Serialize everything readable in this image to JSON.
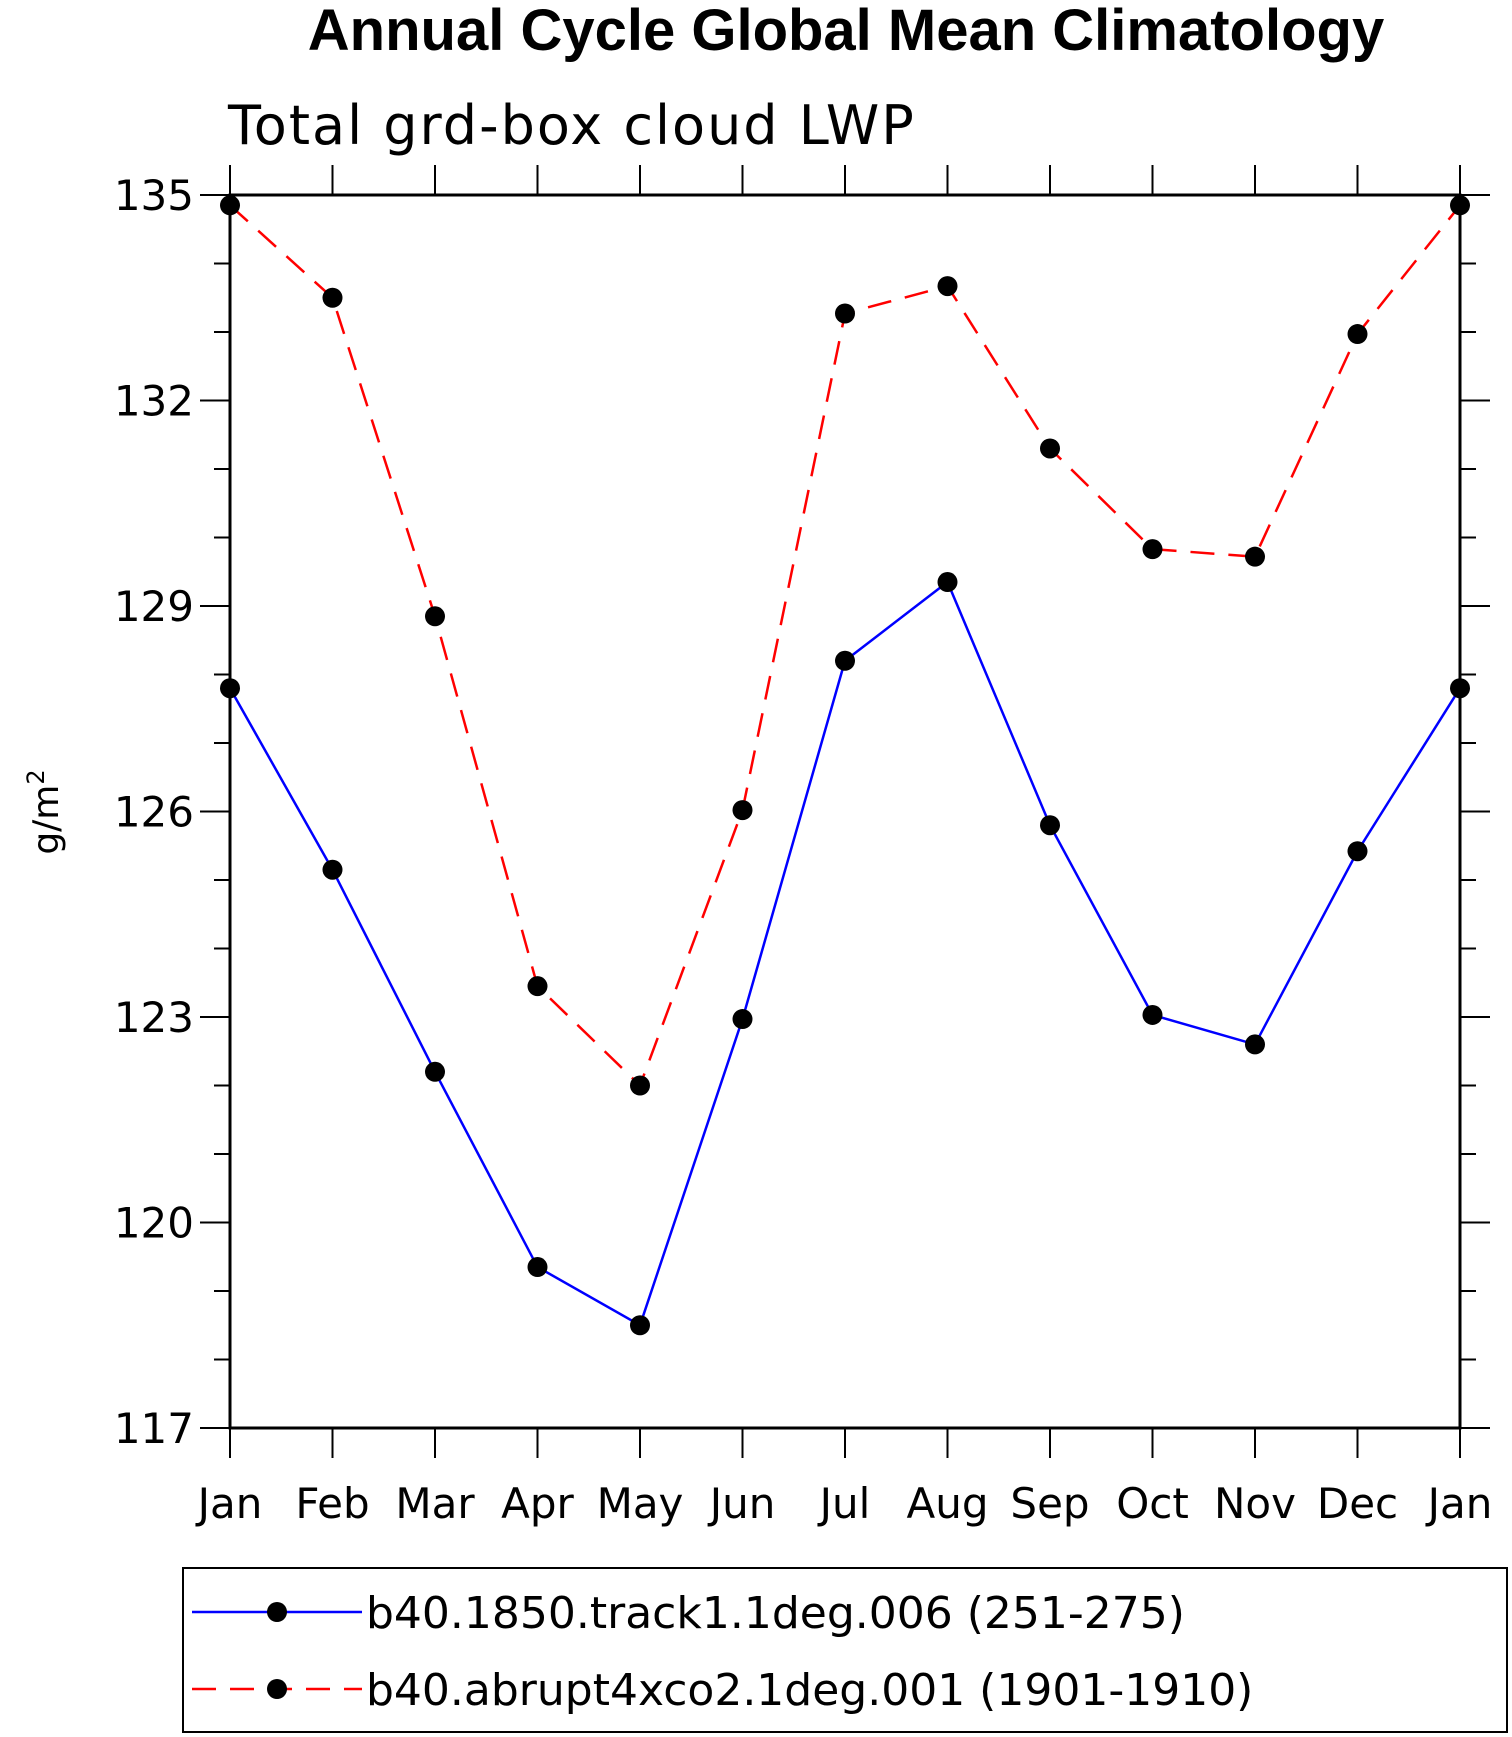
{
  "chart_data": {
    "type": "line",
    "title": "Annual Cycle Global Mean Climatology",
    "subtitle": "Total grd-box cloud LWP",
    "ylabel_base": "g/m",
    "ylabel_sup": "2",
    "ylim": [
      117,
      135
    ],
    "yticks": [
      117,
      120,
      123,
      126,
      129,
      132,
      135
    ],
    "categories": [
      "Jan",
      "Feb",
      "Mar",
      "Apr",
      "May",
      "Jun",
      "Jul",
      "Aug",
      "Sep",
      "Oct",
      "Nov",
      "Dec",
      "Jan"
    ],
    "series": [
      {
        "name": "b40.1850.track1.1deg.006 (251-275)",
        "color": "#0000ff",
        "dash": "solid",
        "values": [
          127.8,
          125.15,
          122.2,
          119.35,
          118.5,
          122.97,
          128.2,
          129.35,
          125.8,
          123.03,
          122.6,
          125.42,
          127.8
        ]
      },
      {
        "name": "b40.abrupt4xco2.1deg.001 (1901-1910)",
        "color": "#ff0000",
        "dash": "dashed",
        "values": [
          134.85,
          133.5,
          128.85,
          123.45,
          122.0,
          126.02,
          133.27,
          133.67,
          131.3,
          129.83,
          129.72,
          132.97,
          134.85
        ]
      }
    ],
    "grid": false,
    "legend_position": "bottom"
  }
}
